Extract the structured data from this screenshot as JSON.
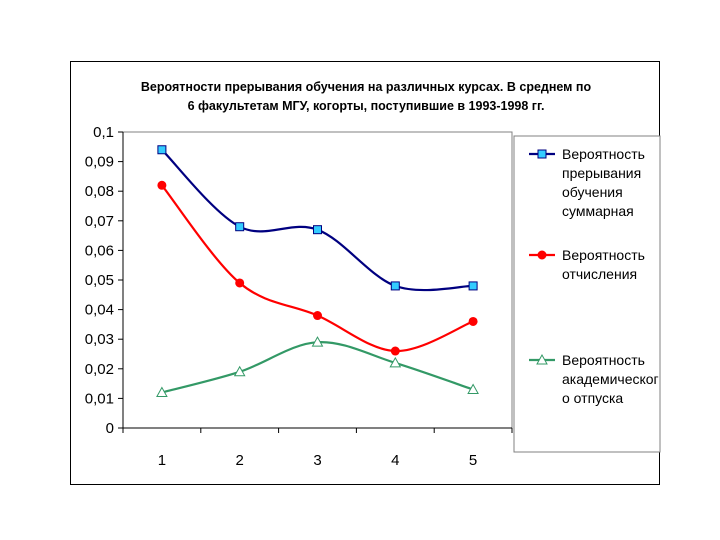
{
  "chart_data": {
    "type": "line",
    "title_lines": [
      "Вероятности прерывания обучения на различных курсах. В среднем по",
      "6 факультетам МГУ, когорты, поступившие в 1993-1998 гг."
    ],
    "categories": [
      "1",
      "2",
      "3",
      "4",
      "5"
    ],
    "ylim": [
      0,
      0.1
    ],
    "yticks": [
      0,
      0.01,
      0.02,
      0.03,
      0.04,
      0.05,
      0.06,
      0.07,
      0.08,
      0.09,
      0.1
    ],
    "ytick_labels": [
      "0",
      "0,01",
      "0,02",
      "0,03",
      "0,04",
      "0,05",
      "0,06",
      "0,07",
      "0,08",
      "0,09",
      "0,1"
    ],
    "grid": false,
    "legend_position": "right",
    "smooth": true,
    "series": [
      {
        "name_lines": [
          "Вероятность",
          "прерывания",
          "обучения",
          "суммарная"
        ],
        "values": [
          0.094,
          0.068,
          0.067,
          0.048,
          0.048
        ],
        "color": "#000080",
        "marker": "square",
        "marker_fill": "#33CCFF"
      },
      {
        "name_lines": [
          "Вероятность",
          "отчисления"
        ],
        "values": [
          0.082,
          0.049,
          0.038,
          0.026,
          0.036
        ],
        "color": "#FF0000",
        "marker": "circle",
        "marker_fill": "#FF0000"
      },
      {
        "name_lines": [
          "Вероятность",
          "академическог",
          "о отпуска"
        ],
        "values": [
          0.012,
          0.019,
          0.029,
          0.022,
          0.013
        ],
        "color": "#339966",
        "marker": "triangle",
        "marker_fill": "#FFFFFF"
      }
    ]
  }
}
